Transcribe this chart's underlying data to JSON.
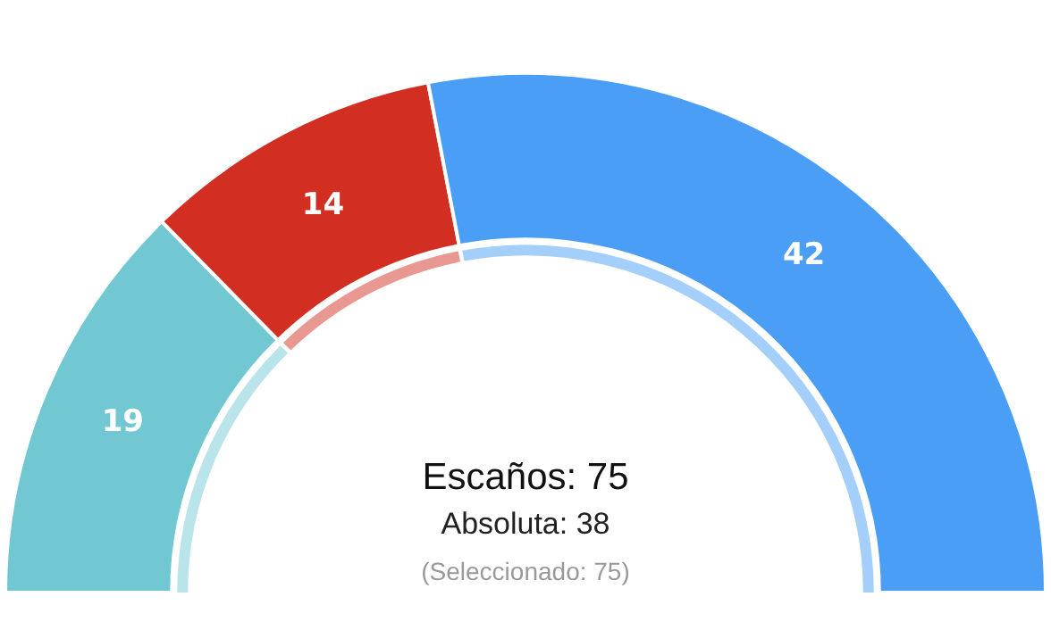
{
  "chart_data": {
    "type": "donut",
    "categories": [
      null,
      null,
      null
    ],
    "values": [
      19,
      14,
      42
    ],
    "colors": [
      "#72c8d2",
      "#d22e22",
      "#4a9ef6"
    ],
    "data_labels": true,
    "legend": false,
    "annotations": [
      "Escaños: 75",
      "Absoluta: 38",
      "(Seleccionado: 75)"
    ]
  }
}
